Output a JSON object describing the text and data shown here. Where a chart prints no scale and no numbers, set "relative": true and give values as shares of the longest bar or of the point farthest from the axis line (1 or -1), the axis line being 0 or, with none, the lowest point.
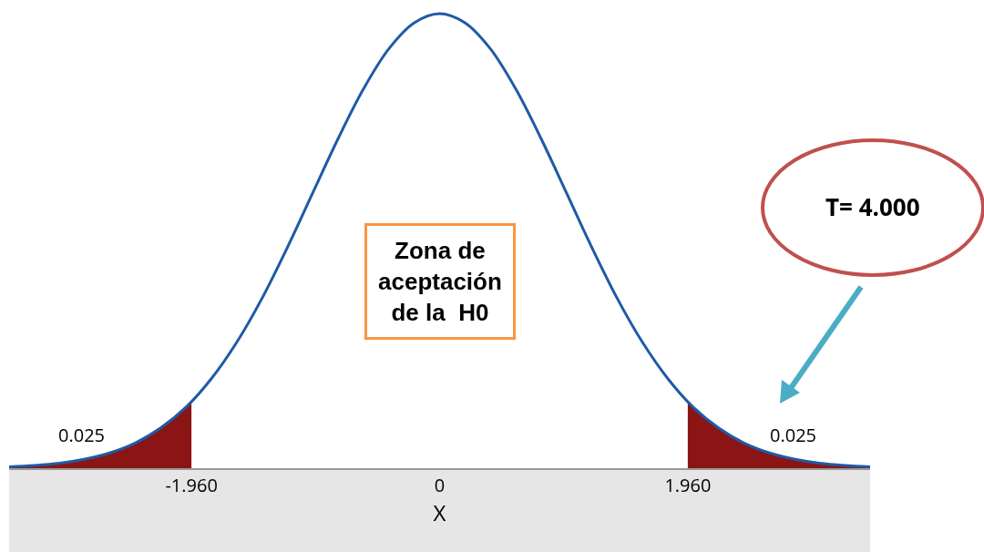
{
  "chart_data": {
    "type": "line",
    "relative": true,
    "xlabel": "X",
    "xlim": [
      -3.4,
      3.4
    ],
    "xticks": [
      {
        "value": -1.96,
        "label": "-1.960"
      },
      0,
      {
        "value": 1.96,
        "label": "1.960"
      }
    ],
    "grid": false,
    "marker": "none",
    "line_style": "solid",
    "annotations": [
      "Zona de\naceptación\nde la  H0",
      "T= 4.000",
      "0.025",
      "0.025"
    ],
    "series": [
      {
        "type": "area",
        "color": "#8b1414",
        "x": [
          -3.4,
          -3.2,
          -3.0,
          -2.8,
          -2.6,
          -2.4,
          -2.2,
          -2.0,
          -1.96
        ],
        "values": [
          0.003,
          0.006,
          0.011,
          0.02,
          0.034,
          0.056,
          0.089,
          0.135,
          0.146
        ]
      },
      {
        "type": "area",
        "color": "#8b1414",
        "x": [
          1.96,
          2.0,
          2.2,
          2.4,
          2.6,
          2.8,
          3.0,
          3.2,
          3.4
        ],
        "values": [
          0.146,
          0.135,
          0.089,
          0.056,
          0.034,
          0.02,
          0.011,
          0.006,
          0.003
        ]
      },
      {
        "color": "#1f5aa6",
        "x": [
          -3.4,
          -3.2,
          -3.0,
          -2.8,
          -2.6,
          -2.4,
          -2.2,
          -2.0,
          -1.8,
          -1.6,
          -1.4,
          -1.2,
          -1.0,
          -0.8,
          -0.6,
          -0.4,
          -0.2,
          0,
          0.2,
          0.4,
          0.6,
          0.8,
          1.0,
          1.2,
          1.4,
          1.6,
          1.8,
          2.0,
          2.2,
          2.4,
          2.6,
          2.8,
          3.0,
          3.2,
          3.4
        ],
        "values": [
          0.003,
          0.006,
          0.011,
          0.02,
          0.034,
          0.056,
          0.089,
          0.135,
          0.198,
          0.278,
          0.375,
          0.487,
          0.607,
          0.726,
          0.835,
          0.923,
          0.98,
          1,
          0.98,
          0.923,
          0.835,
          0.726,
          0.607,
          0.487,
          0.375,
          0.278,
          0.198,
          0.135,
          0.089,
          0.056,
          0.034,
          0.02,
          0.011,
          0.006,
          0.003
        ]
      }
    ]
  }
}
